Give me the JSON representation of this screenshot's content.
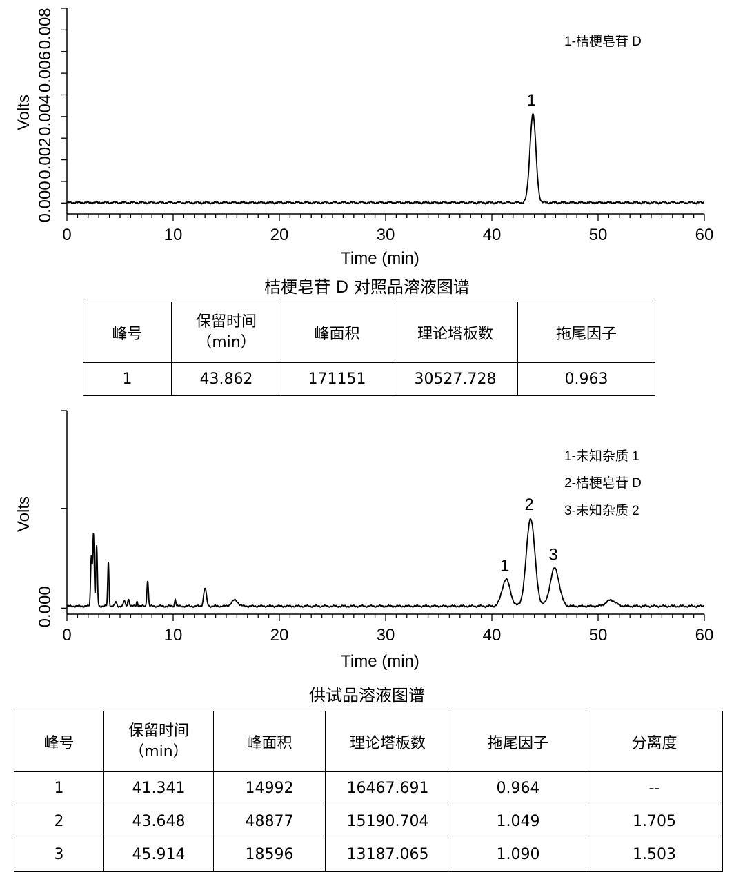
{
  "chart_data": [
    {
      "type": "line",
      "title": "桔梗皂苷 D 对照品溶液图谱",
      "xlabel": "Time (min)",
      "ylabel": "Volts",
      "xlim": [
        0,
        60
      ],
      "ylim": [
        -0.0005,
        0.009
      ],
      "x_ticks": [
        "0",
        "10",
        "20",
        "30",
        "40",
        "50",
        "60"
      ],
      "y_ticks": [
        "0.000",
        "0.002",
        "0.004",
        "0.006",
        "0.008"
      ],
      "legend": [
        "1-桔梗皂苷 D"
      ],
      "peaks": [
        {
          "label": "1",
          "x": 43.862,
          "height": 0.0041,
          "width": 0.28
        }
      ],
      "baseline": 2e-05
    },
    {
      "type": "line",
      "title": "供试品溶液图谱",
      "xlabel": "Time (min)",
      "ylabel": "Volts",
      "xlim": [
        0,
        60
      ],
      "ylim": [
        -0.0003,
        0.0099
      ],
      "x_ticks": [
        "0",
        "10",
        "20",
        "30",
        "40",
        "50",
        "60"
      ],
      "y_ticks": [
        "0.000"
      ],
      "legend": [
        "1-未知杂质 1",
        "2-桔梗皂苷 D",
        "3-未知杂质 2"
      ],
      "peaks": [
        {
          "label": "1",
          "x": 41.341,
          "height": 0.00135,
          "width": 0.38
        },
        {
          "label": "2",
          "x": 43.648,
          "height": 0.0044,
          "width": 0.4
        },
        {
          "label": "3",
          "x": 45.914,
          "height": 0.0019,
          "width": 0.42
        }
      ],
      "minor_peaks": [
        {
          "x": 2.3,
          "height": 0.0025,
          "width": 0.07
        },
        {
          "x": 2.5,
          "height": 0.0036,
          "width": 0.07
        },
        {
          "x": 2.8,
          "height": 0.003,
          "width": 0.07
        },
        {
          "x": 3.9,
          "height": 0.0022,
          "width": 0.06
        },
        {
          "x": 4.6,
          "height": 0.0002,
          "width": 0.08
        },
        {
          "x": 5.4,
          "height": 0.00025,
          "width": 0.08
        },
        {
          "x": 5.8,
          "height": 0.00035,
          "width": 0.08
        },
        {
          "x": 6.6,
          "height": 0.00025,
          "width": 0.06
        },
        {
          "x": 7.6,
          "height": 0.0013,
          "width": 0.07
        },
        {
          "x": 10.2,
          "height": 0.00035,
          "width": 0.06
        },
        {
          "x": 13.0,
          "height": 0.0009,
          "width": 0.13
        },
        {
          "x": 15.8,
          "height": 0.0003,
          "width": 0.3
        },
        {
          "x": 51.2,
          "height": 0.0003,
          "width": 0.45
        }
      ],
      "baseline": 0.0001
    }
  ],
  "table1": {
    "headers": [
      "峰号",
      "保留时间",
      "（min）",
      "峰面积",
      "理论塔板数",
      "拖尾因子"
    ],
    "rows": [
      [
        "1",
        "43.862",
        "171151",
        "30527.728",
        "0.963"
      ]
    ]
  },
  "table2": {
    "headers": [
      "峰号",
      "保留时间",
      "（min）",
      "峰面积",
      "理论塔板数",
      "拖尾因子",
      "分离度"
    ],
    "rows": [
      [
        "1",
        "41.341",
        "14992",
        "16467.691",
        "0.964",
        "--"
      ],
      [
        "2",
        "43.648",
        "48877",
        "15190.704",
        "1.049",
        "1.705"
      ],
      [
        "3",
        "45.914",
        "18596",
        "13187.065",
        "1.090",
        "1.503"
      ]
    ]
  }
}
